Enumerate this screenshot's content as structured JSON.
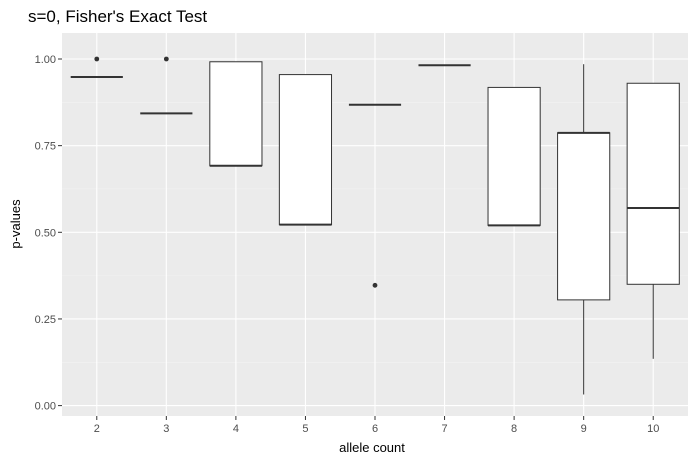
{
  "chart_data": {
    "type": "boxplot",
    "title": "s=0, Fisher's Exact Test",
    "xlabel": "allele count",
    "ylabel": "p-values",
    "ylim": [
      -0.03,
      1.075
    ],
    "yticks": [
      0.0,
      0.25,
      0.5,
      0.75,
      1.0
    ],
    "ytick_labels": [
      "0.00",
      "0.25",
      "0.50",
      "0.75",
      "1.00"
    ],
    "categories": [
      "2",
      "3",
      "4",
      "5",
      "6",
      "7",
      "8",
      "9",
      "10"
    ],
    "boxes": [
      {
        "category": "2",
        "whisker_low": 0.948,
        "q1": 0.948,
        "median": 0.948,
        "q3": 0.948,
        "whisker_high": 0.948,
        "outliers": [
          1.0
        ]
      },
      {
        "category": "3",
        "whisker_low": 0.843,
        "q1": 0.843,
        "median": 0.843,
        "q3": 0.843,
        "whisker_high": 0.843,
        "outliers": [
          1.0
        ]
      },
      {
        "category": "4",
        "whisker_low": 0.692,
        "q1": 0.692,
        "median": 0.692,
        "q3": 0.992,
        "whisker_high": 0.992,
        "outliers": []
      },
      {
        "category": "5",
        "whisker_low": 0.522,
        "q1": 0.522,
        "median": 0.522,
        "q3": 0.955,
        "whisker_high": 0.955,
        "outliers": []
      },
      {
        "category": "6",
        "whisker_low": 0.868,
        "q1": 0.868,
        "median": 0.868,
        "q3": 0.868,
        "whisker_high": 0.868,
        "outliers": [
          0.347
        ]
      },
      {
        "category": "7",
        "whisker_low": 0.982,
        "q1": 0.982,
        "median": 0.982,
        "q3": 0.982,
        "whisker_high": 0.982,
        "outliers": []
      },
      {
        "category": "8",
        "whisker_low": 0.52,
        "q1": 0.52,
        "median": 0.52,
        "q3": 0.918,
        "whisker_high": 0.918,
        "outliers": []
      },
      {
        "category": "9",
        "whisker_low": 0.032,
        "q1": 0.305,
        "median": 0.787,
        "q3": 0.787,
        "whisker_high": 0.985,
        "outliers": []
      },
      {
        "category": "10",
        "whisker_low": 0.135,
        "q1": 0.35,
        "median": 0.57,
        "q3": 0.93,
        "whisker_high": 0.93,
        "outliers": []
      }
    ],
    "colors": {
      "panel": "#ebebeb",
      "grid_major": "#ffffff",
      "grid_minor": "#f2f2f2",
      "box_fill": "#ffffff",
      "box_line": "#333333",
      "tick": "#333333"
    }
  }
}
